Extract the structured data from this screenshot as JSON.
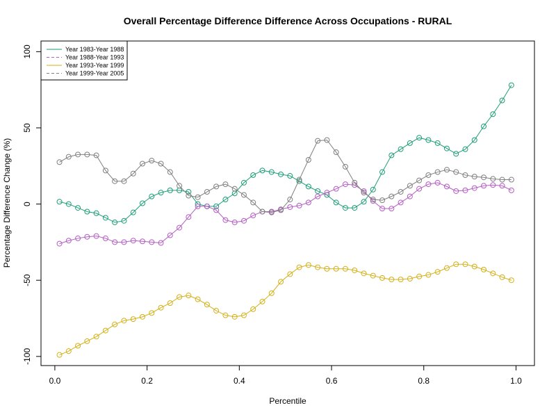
{
  "chart_data": {
    "type": "line",
    "title": "Overall Percentage Difference Difference Across Occupations - RURAL",
    "xlabel": "Percentile",
    "ylabel": "Percentage Difference Change (%)",
    "xlim": [
      -0.03,
      1.04
    ],
    "ylim": [
      -106,
      107
    ],
    "xticks": [
      0.0,
      0.2,
      0.4,
      0.6,
      0.8,
      1.0
    ],
    "xtick_labels": [
      "0.0",
      "0.2",
      "0.4",
      "0.6",
      "0.8",
      "1.0"
    ],
    "yticks": [
      -100,
      -50,
      0,
      50,
      100
    ],
    "ytick_labels": [
      "-100",
      "-50",
      "0",
      "50",
      "100"
    ],
    "grid": false,
    "legend_position": "top-left",
    "x": [
      0.01,
      0.03,
      0.05,
      0.07,
      0.09,
      0.11,
      0.13,
      0.15,
      0.17,
      0.19,
      0.21,
      0.23,
      0.25,
      0.27,
      0.29,
      0.31,
      0.33,
      0.35,
      0.37,
      0.39,
      0.41,
      0.43,
      0.45,
      0.47,
      0.49,
      0.51,
      0.53,
      0.55,
      0.57,
      0.59,
      0.61,
      0.63,
      0.65,
      0.67,
      0.69,
      0.71,
      0.73,
      0.75,
      0.77,
      0.79,
      0.81,
      0.83,
      0.85,
      0.87,
      0.89,
      0.91,
      0.93,
      0.95,
      0.97,
      0.99
    ],
    "series": [
      {
        "name": "Year 1983-Year 1988",
        "color": "#1b9e77",
        "dash": "solid",
        "values": [
          1.5,
          0,
          -2.5,
          -5,
          -6,
          -9,
          -12,
          -11,
          -5.5,
          0.5,
          5,
          7.5,
          9,
          9,
          8,
          0,
          -1.5,
          -1.5,
          3,
          7,
          14,
          19,
          22,
          21,
          19.5,
          18.5,
          15,
          11.5,
          8.5,
          6,
          1,
          -2.5,
          -2.5,
          1.5,
          9.5,
          21,
          32,
          36,
          40,
          43.5,
          42,
          40,
          36.5,
          33,
          36,
          42,
          51,
          59,
          68,
          78
        ]
      },
      {
        "name": "Year 1988-Year 1993",
        "color": "#b45cc4",
        "dash": "dashed",
        "values": [
          -26,
          -24,
          -22.5,
          -21.5,
          -21,
          -22.5,
          -25,
          -25,
          -24,
          -24.5,
          -25,
          -25.5,
          -20.5,
          -15.5,
          -8.5,
          -1.5,
          -1.5,
          -4,
          -10.5,
          -12,
          -11,
          -7.5,
          -5,
          -5,
          -3.5,
          -2,
          -1,
          1,
          5,
          7.5,
          10,
          13,
          12.5,
          8.5,
          2,
          -3,
          -3,
          1,
          5,
          10,
          13,
          14,
          11.5,
          8.5,
          9,
          10.5,
          12,
          12.5,
          12,
          9
        ]
      },
      {
        "name": "Year 1993-Year 1999",
        "color": "#d4b016",
        "dash": "solid",
        "values": [
          -99,
          -96.5,
          -93,
          -90,
          -87,
          -83,
          -79,
          -76.5,
          -75.5,
          -74,
          -71.5,
          -68,
          -65,
          -61,
          -60,
          -62.5,
          -66,
          -70,
          -73,
          -74,
          -73,
          -69,
          -64,
          -58.5,
          -51,
          -46,
          -41.5,
          -40,
          -41.5,
          -42.5,
          -42.5,
          -42.5,
          -43.5,
          -45.5,
          -47,
          -48.5,
          -49.5,
          -49.5,
          -49,
          -47.5,
          -46.5,
          -44.5,
          -42,
          -39.5,
          -39.5,
          -41,
          -43,
          -45.5,
          -48,
          -50
        ]
      },
      {
        "name": "Year 1999-Year 2005",
        "color": "#7f7f7f",
        "dash": "dashed",
        "values": [
          27.5,
          31,
          32.5,
          32.5,
          32,
          22,
          15,
          15,
          20,
          26.5,
          28.5,
          26.5,
          21,
          12,
          5.5,
          4.5,
          8,
          11.5,
          13,
          10,
          6,
          1,
          -5,
          -5.5,
          -4,
          3,
          16,
          29,
          41.5,
          42,
          34,
          24.5,
          14,
          7.5,
          3,
          2.5,
          5,
          8,
          12,
          15.5,
          19,
          21,
          22.5,
          21,
          19,
          18,
          17.5,
          16.5,
          16,
          16
        ]
      }
    ]
  }
}
